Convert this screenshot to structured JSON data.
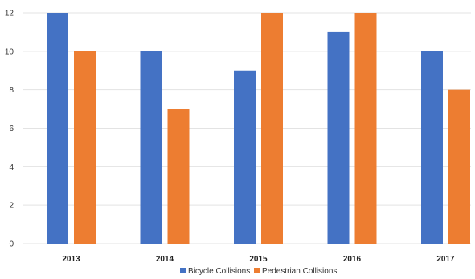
{
  "chart_data": {
    "type": "bar",
    "categories": [
      "2013",
      "2014",
      "2015",
      "2016",
      "2017"
    ],
    "series": [
      {
        "name": "Bicycle Collisions",
        "values": [
          12,
          10,
          9,
          11,
          10
        ],
        "color": "#4472C4"
      },
      {
        "name": "Pedestrian Collisions",
        "values": [
          10,
          7,
          12,
          12,
          8
        ],
        "color": "#ED7D31"
      }
    ],
    "ylim": [
      0,
      12
    ],
    "yticks": [
      0,
      2,
      4,
      6,
      8,
      10,
      12
    ],
    "grid": true,
    "legend_position": "bottom"
  }
}
